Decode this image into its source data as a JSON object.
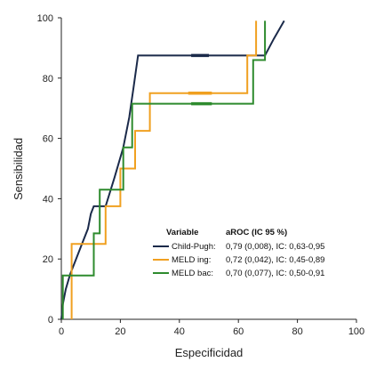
{
  "chart_data": {
    "type": "line",
    "title": "",
    "xlabel": "Especificidad",
    "ylabel": "Sensibilidad",
    "xlim": [
      0,
      100
    ],
    "ylim": [
      0,
      100
    ],
    "x_ticks": [
      "0",
      "20",
      "40",
      "60",
      "80",
      "100"
    ],
    "y_ticks": [
      "0",
      "20",
      "40",
      "60",
      "80",
      "100"
    ],
    "grid": false,
    "legend_position": "bottom-right",
    "legend_headers": {
      "variable": "Variable",
      "value": "aROC (IC 95 %)"
    },
    "series": [
      {
        "name": "Child-Pugh:",
        "label": "0,79 (0,008), IC: 0,63-0,95",
        "color": "#1b2a4a",
        "points": [
          [
            0,
            0
          ],
          [
            0.5,
            5
          ],
          [
            1.5,
            10
          ],
          [
            3,
            15
          ],
          [
            5,
            20
          ],
          [
            7,
            25
          ],
          [
            9,
            30
          ],
          [
            10,
            35
          ],
          [
            11,
            37.5
          ],
          [
            15,
            37.5
          ],
          [
            18,
            47
          ],
          [
            21,
            57
          ],
          [
            23,
            67
          ],
          [
            24.5,
            77
          ],
          [
            26,
            87.5
          ],
          [
            43,
            87.5
          ],
          [
            48,
            87.5
          ],
          [
            69,
            87.5
          ],
          [
            72,
            93
          ],
          [
            75.5,
            99
          ]
        ],
        "marker": [
          44,
          50,
          87.5
        ]
      },
      {
        "name": "MELD ing:",
        "label": "0,72 (0,042), IC: 0,45-0,89",
        "color": "#f0a020",
        "points": [
          [
            3.5,
            0
          ],
          [
            3.5,
            12.5
          ],
          [
            3.5,
            25
          ],
          [
            15,
            25
          ],
          [
            15,
            37.5
          ],
          [
            20,
            37.5
          ],
          [
            20,
            50
          ],
          [
            25,
            50
          ],
          [
            25,
            62.5
          ],
          [
            30,
            62.5
          ],
          [
            30,
            75
          ],
          [
            43,
            75
          ],
          [
            50,
            75
          ],
          [
            63,
            75
          ],
          [
            63,
            87.5
          ],
          [
            66,
            87.5
          ],
          [
            66,
            99
          ]
        ],
        "marker": [
          43,
          51,
          75
        ]
      },
      {
        "name": "MELD bac:",
        "label": "0,70 (0,077), IC: 0,50-0,91",
        "color": "#2e8b2e",
        "points": [
          [
            0.5,
            0
          ],
          [
            0.5,
            14.5
          ],
          [
            11,
            14.5
          ],
          [
            11,
            28.5
          ],
          [
            13,
            28.5
          ],
          [
            13,
            43
          ],
          [
            21,
            43
          ],
          [
            21,
            57
          ],
          [
            24,
            57
          ],
          [
            24,
            71.5
          ],
          [
            44,
            71.5
          ],
          [
            51,
            71.5
          ],
          [
            65,
            71.5
          ],
          [
            65,
            86
          ],
          [
            69,
            86
          ],
          [
            69,
            99
          ]
        ],
        "marker": [
          44,
          51,
          71.5
        ]
      }
    ]
  }
}
